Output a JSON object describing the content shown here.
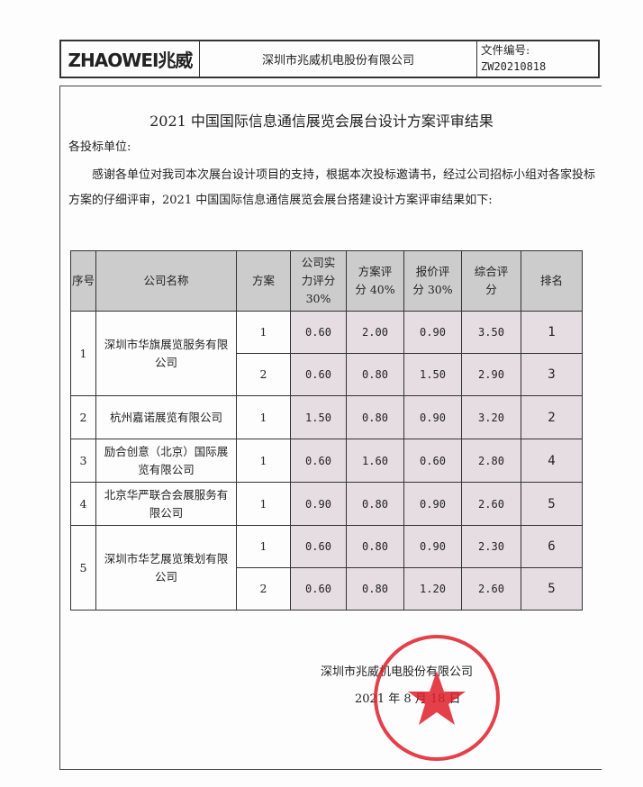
{
  "header": {
    "logo": "ZHAOWEI兆威",
    "company": "深圳市兆威机电股份有限公司",
    "doc_label": "文件编号:",
    "doc_no": "ZW20210818"
  },
  "title": "2021 中国国际信息通信展览会展台设计方案评审结果",
  "salutation": "各投标单位:",
  "intro": "感谢各单位对我司本次展台设计项目的支持，根据本次投标邀请书，经过公司招标小组对各家投标方案的仔细评审，2021 中国国际信息通信展览会展台搭建设计方案评审结果如下:",
  "table": {
    "headers": [
      "序号",
      "公司名称",
      "方案",
      "公司实力评分30%",
      "方案评分 40%",
      "报价评分 30%",
      "综合评分",
      "排名"
    ],
    "rows": [
      {
        "no": "1",
        "company": "深圳市华旗展览服务有限公司",
        "plans": [
          [
            "1",
            "0.60",
            "2.00",
            "0.90",
            "3.50",
            "1"
          ],
          [
            "2",
            "0.60",
            "0.80",
            "1.50",
            "2.90",
            "3"
          ]
        ]
      },
      {
        "no": "2",
        "company": "杭州嘉诺展览有限公司",
        "plans": [
          [
            "1",
            "1.50",
            "0.80",
            "0.90",
            "3.20",
            "2"
          ]
        ]
      },
      {
        "no": "3",
        "company": "励合创意（北京）国际展览有限公司",
        "plans": [
          [
            "1",
            "0.60",
            "1.60",
            "0.60",
            "2.80",
            "4"
          ]
        ]
      },
      {
        "no": "4",
        "company": "北京华严联合会展服务有限公司",
        "plans": [
          [
            "1",
            "0.90",
            "0.80",
            "0.90",
            "2.60",
            "5"
          ]
        ]
      },
      {
        "no": "5",
        "company": "深圳市华艺展览策划有限公司",
        "plans": [
          [
            "1",
            "0.60",
            "0.80",
            "0.90",
            "2.30",
            "6"
          ],
          [
            "2",
            "0.60",
            "0.80",
            "1.20",
            "2.60",
            "5"
          ]
        ]
      }
    ]
  },
  "signature": {
    "company": "深圳市兆威机电股份有限公司",
    "date": "2021 年 8 月 18 日",
    "stamp_text": "深圳市兆威机电股份有限公司"
  },
  "colors": {
    "stamp": "#e0202a",
    "score_bg": "#e6dde2",
    "header_bg": "#cccccc"
  }
}
